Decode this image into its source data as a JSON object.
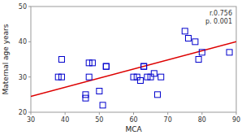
{
  "chart_data": {
    "type": "scatter",
    "xlabel": "MCA",
    "ylabel": "Maternal age years",
    "xlim": [
      30,
      90
    ],
    "ylim": [
      20,
      50
    ],
    "xticks": [
      30,
      40,
      50,
      60,
      70,
      80,
      90
    ],
    "yticks": [
      20,
      30,
      40,
      50
    ],
    "grid": false,
    "series": [
      {
        "type": "scatter",
        "marker": "square",
        "color": "#0000cc",
        "x": [
          38,
          39,
          39,
          46,
          46,
          47,
          47,
          48,
          50,
          51,
          52,
          52,
          60,
          61,
          62,
          63,
          63,
          64,
          65,
          66,
          67,
          68,
          75,
          76,
          78,
          79,
          80,
          88
        ],
        "values": [
          30,
          30,
          35,
          24,
          25,
          30,
          34,
          34,
          26,
          22,
          33,
          33,
          30,
          30,
          29,
          33,
          33,
          30,
          30,
          31,
          25,
          30,
          43,
          41,
          40,
          35,
          37,
          37
        ]
      },
      {
        "type": "line",
        "color": "#dd0000",
        "x": [
          30,
          90
        ],
        "values": [
          24.5,
          40.0
        ]
      }
    ],
    "annotation": "r.0.756\np. 0.001"
  }
}
